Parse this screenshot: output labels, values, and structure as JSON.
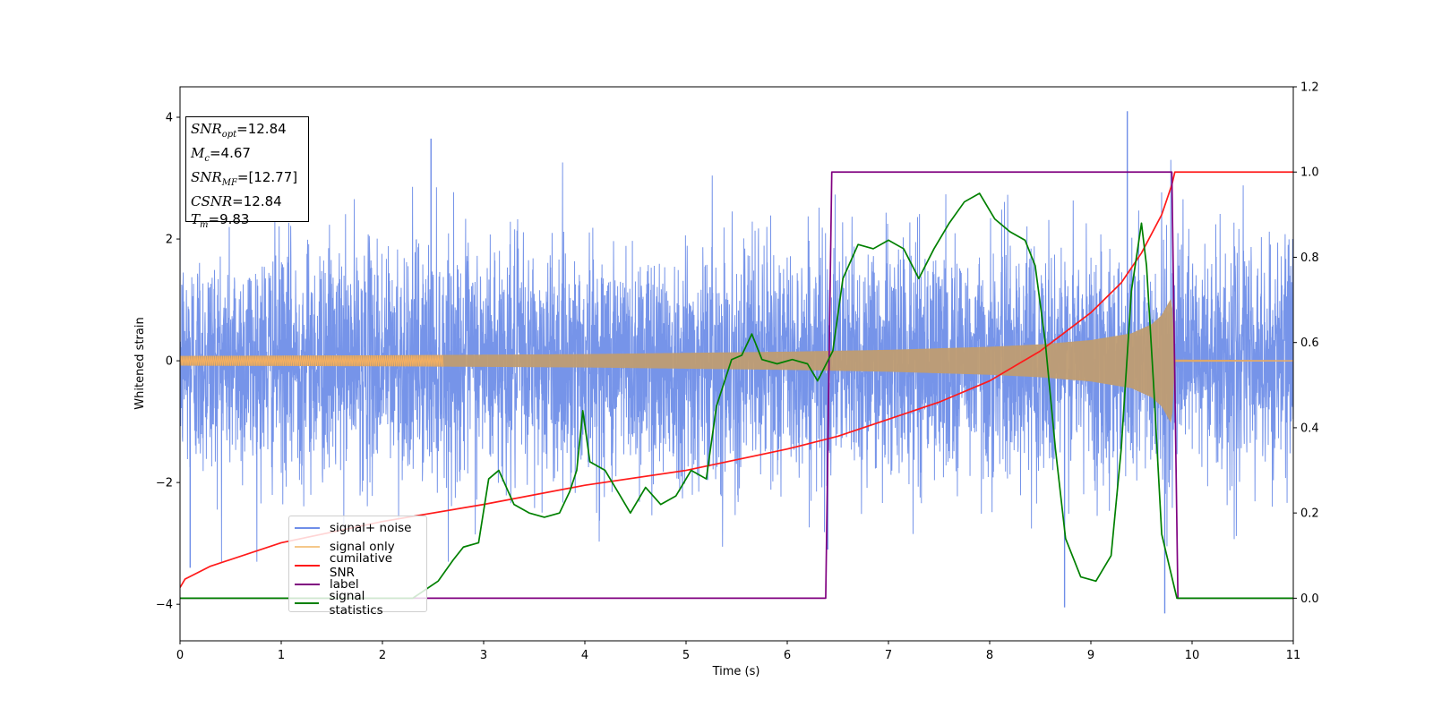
{
  "chart_data": {
    "type": "line",
    "xlabel": "Time (s)",
    "ylabel": "Whitened strain",
    "xlim": [
      0,
      11
    ],
    "ylim_left": [
      -4.6,
      4.5
    ],
    "ylim_right": [
      -0.1,
      1.2
    ],
    "x_ticks": [
      "0",
      "1",
      "2",
      "3",
      "4",
      "5",
      "6",
      "7",
      "8",
      "9",
      "10",
      "11"
    ],
    "y_ticks_left": [
      "4",
      "2",
      "0",
      "−2",
      "−4"
    ],
    "y_ticks_right": [
      "1.2",
      "1.0",
      "0.8",
      "0.6",
      "0.4",
      "0.2",
      "0.0"
    ],
    "grid": false,
    "legend_position": "lower-left",
    "info_box": {
      "snr_opt": "=12.84",
      "mc": "=4.67",
      "snr_mf": "=[12.77]",
      "csnr": "=12.84",
      "tm": "=9.83"
    },
    "series": [
      {
        "name": "signal+ noise",
        "color": "#6f8ee8",
        "axis": "left",
        "kind": "noise",
        "noise_std_approx": 1.0,
        "spikes": [
          [
            2.48,
            3.65
          ],
          [
            9.36,
            4.1
          ],
          [
            9.73,
            -4.15
          ],
          [
            8.74,
            -4.05
          ],
          [
            6.4,
            -3.1
          ],
          [
            0.1,
            -3.4
          ]
        ]
      },
      {
        "name": "signal only",
        "color": "#f5b062",
        "axis": "left",
        "kind": "chirp",
        "merger_time": 9.83,
        "envelope": [
          [
            0,
            0.08
          ],
          [
            2,
            0.09
          ],
          [
            4,
            0.11
          ],
          [
            6,
            0.15
          ],
          [
            7,
            0.18
          ],
          [
            8,
            0.23
          ],
          [
            8.5,
            0.27
          ],
          [
            9,
            0.34
          ],
          [
            9.4,
            0.45
          ],
          [
            9.6,
            0.6
          ],
          [
            9.7,
            0.75
          ],
          [
            9.8,
            1.05
          ],
          [
            9.83,
            0.02
          ],
          [
            11,
            0.01
          ]
        ]
      },
      {
        "name": "cumilative SNR",
        "color": "#ff1a1a",
        "axis": "right",
        "points": [
          [
            0,
            0.025
          ],
          [
            0.05,
            0.045
          ],
          [
            0.3,
            0.075
          ],
          [
            1,
            0.13
          ],
          [
            2,
            0.18
          ],
          [
            3,
            0.22
          ],
          [
            4,
            0.265
          ],
          [
            5,
            0.3
          ],
          [
            6,
            0.35
          ],
          [
            6.5,
            0.38
          ],
          [
            7,
            0.42
          ],
          [
            7.5,
            0.46
          ],
          [
            8,
            0.51
          ],
          [
            8.5,
            0.58
          ],
          [
            9,
            0.67
          ],
          [
            9.3,
            0.74
          ],
          [
            9.5,
            0.81
          ],
          [
            9.7,
            0.9
          ],
          [
            9.8,
            0.97
          ],
          [
            9.83,
            1.0
          ],
          [
            11,
            1.0
          ]
        ]
      },
      {
        "name": "label",
        "color": "#800080",
        "axis": "right",
        "points": [
          [
            0,
            0
          ],
          [
            6.38,
            0
          ],
          [
            6.44,
            1
          ],
          [
            9.8,
            1
          ],
          [
            9.86,
            0
          ],
          [
            11,
            0
          ]
        ]
      },
      {
        "name": "signal statistics",
        "color": "#008000",
        "axis": "right",
        "points": [
          [
            0,
            0
          ],
          [
            2.3,
            0.0
          ],
          [
            2.55,
            0.04
          ],
          [
            2.7,
            0.09
          ],
          [
            2.8,
            0.12
          ],
          [
            2.95,
            0.13
          ],
          [
            3.05,
            0.28
          ],
          [
            3.15,
            0.3
          ],
          [
            3.3,
            0.22
          ],
          [
            3.45,
            0.2
          ],
          [
            3.6,
            0.19
          ],
          [
            3.75,
            0.2
          ],
          [
            3.85,
            0.25
          ],
          [
            3.92,
            0.3
          ],
          [
            3.98,
            0.44
          ],
          [
            4.05,
            0.32
          ],
          [
            4.2,
            0.3
          ],
          [
            4.35,
            0.24
          ],
          [
            4.45,
            0.2
          ],
          [
            4.6,
            0.26
          ],
          [
            4.75,
            0.22
          ],
          [
            4.9,
            0.24
          ],
          [
            5.05,
            0.3
          ],
          [
            5.2,
            0.28
          ],
          [
            5.3,
            0.45
          ],
          [
            5.45,
            0.56
          ],
          [
            5.55,
            0.57
          ],
          [
            5.65,
            0.62
          ],
          [
            5.75,
            0.56
          ],
          [
            5.9,
            0.55
          ],
          [
            6.05,
            0.56
          ],
          [
            6.2,
            0.55
          ],
          [
            6.3,
            0.51
          ],
          [
            6.45,
            0.58
          ],
          [
            6.55,
            0.75
          ],
          [
            6.7,
            0.83
          ],
          [
            6.85,
            0.82
          ],
          [
            7.0,
            0.84
          ],
          [
            7.15,
            0.82
          ],
          [
            7.3,
            0.75
          ],
          [
            7.45,
            0.82
          ],
          [
            7.6,
            0.88
          ],
          [
            7.75,
            0.93
          ],
          [
            7.9,
            0.95
          ],
          [
            8.05,
            0.89
          ],
          [
            8.2,
            0.86
          ],
          [
            8.35,
            0.84
          ],
          [
            8.45,
            0.78
          ],
          [
            8.55,
            0.6
          ],
          [
            8.65,
            0.35
          ],
          [
            8.75,
            0.14
          ],
          [
            8.9,
            0.05
          ],
          [
            9.05,
            0.04
          ],
          [
            9.2,
            0.1
          ],
          [
            9.3,
            0.35
          ],
          [
            9.4,
            0.72
          ],
          [
            9.5,
            0.88
          ],
          [
            9.55,
            0.78
          ],
          [
            9.62,
            0.5
          ],
          [
            9.7,
            0.15
          ],
          [
            9.85,
            0.0
          ],
          [
            11,
            0.0
          ]
        ]
      }
    ]
  }
}
